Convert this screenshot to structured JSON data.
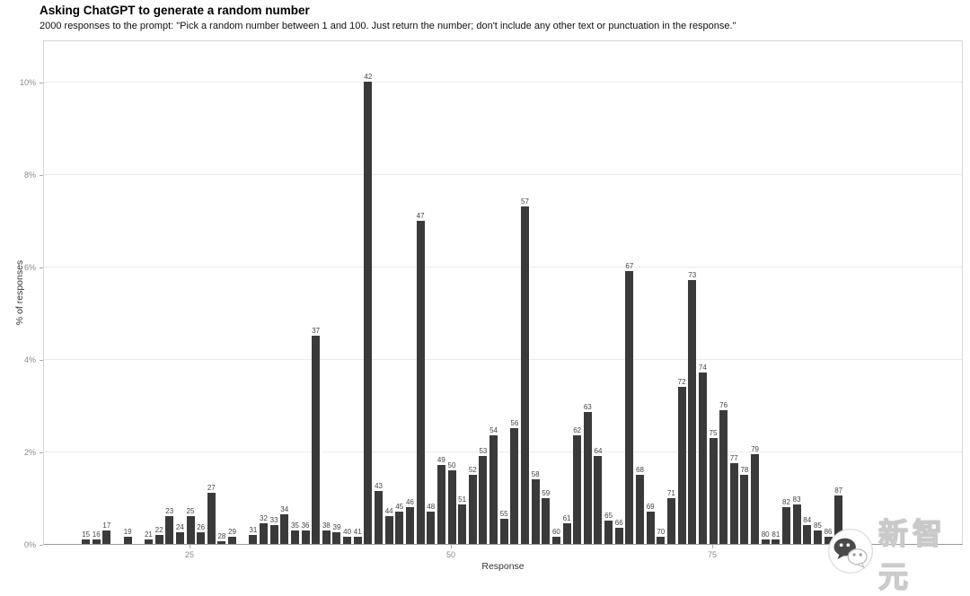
{
  "header": {
    "title": "Asking ChatGPT to generate a random number",
    "subtitle": "2000 responses to the prompt: \"Pick a random number between 1 and 100. Just return the number; don't include any other text or punctuation in the response.\""
  },
  "watermark": {
    "logo": "wechat-logo-icon",
    "text": "新智元"
  },
  "chart_data": {
    "type": "bar",
    "title": "Asking ChatGPT to generate a random number",
    "xlabel": "Response",
    "ylabel": "% of responses",
    "ylim": [
      0,
      10.9
    ],
    "yticks": [
      0,
      2,
      4,
      6,
      8,
      10
    ],
    "ytick_labels": [
      "0%",
      "2%",
      "4%",
      "6%",
      "8%",
      "10%"
    ],
    "xticks": [
      25,
      50,
      75
    ],
    "grid": true,
    "bar_color": "#3a3a3a",
    "bar_value_labels": true,
    "x": [
      15,
      16,
      17,
      19,
      21,
      22,
      23,
      24,
      25,
      26,
      27,
      28,
      29,
      31,
      32,
      33,
      34,
      35,
      36,
      37,
      38,
      39,
      40,
      41,
      42,
      43,
      44,
      45,
      46,
      47,
      48,
      49,
      50,
      51,
      52,
      53,
      54,
      55,
      56,
      57,
      58,
      59,
      60,
      61,
      62,
      63,
      64,
      65,
      66,
      67,
      68,
      69,
      70,
      71,
      72,
      73,
      74,
      75,
      76,
      77,
      78,
      79,
      80,
      81,
      82,
      83,
      84,
      85,
      86,
      87
    ],
    "values": [
      0.1,
      0.1,
      0.3,
      0.15,
      0.1,
      0.2,
      0.6,
      0.25,
      0.6,
      0.25,
      1.1,
      0.05,
      0.15,
      0.2,
      0.45,
      0.4,
      0.65,
      0.3,
      0.3,
      4.5,
      0.3,
      0.25,
      0.15,
      0.15,
      10.0,
      1.15,
      0.6,
      0.7,
      0.8,
      7.0,
      0.7,
      1.7,
      1.6,
      0.85,
      1.5,
      1.9,
      2.35,
      0.55,
      2.5,
      7.3,
      1.4,
      1.0,
      0.15,
      0.45,
      2.35,
      2.85,
      1.9,
      0.5,
      0.35,
      5.9,
      1.5,
      0.7,
      0.15,
      1.0,
      3.4,
      5.7,
      3.7,
      2.3,
      2.9,
      1.75,
      1.5,
      1.95,
      0.1,
      0.1,
      0.8,
      0.85,
      0.4,
      0.3,
      0.15,
      1.05
    ]
  }
}
